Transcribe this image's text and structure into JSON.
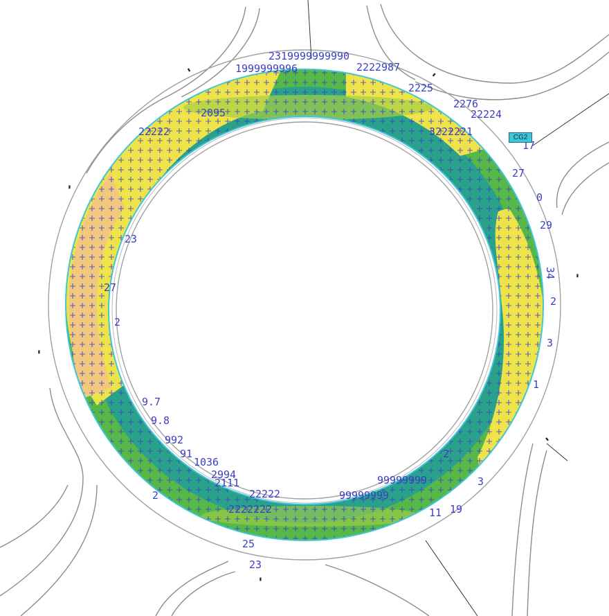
{
  "map": {
    "type": "roundabout-contour-plot",
    "colors": {
      "background": "#ffffff",
      "road_lines": "#8c8c8c",
      "contour_low": "#2aa18a",
      "contour_mid": "#57b84a",
      "contour_light": "#a5cf45",
      "contour_high": "#eee34a",
      "contour_peak": "#f2c77e",
      "edge_cyan": "#3fc6d8",
      "grid_values": "#3a3ec4"
    },
    "callout_label": "CG2",
    "inner_island_label": "",
    "value_labels": [
      {
        "text": "2319999999990"
      },
      {
        "text": "2222987"
      },
      {
        "text": "2225"
      },
      {
        "text": "1999999996"
      },
      {
        "text": "2276"
      },
      {
        "text": "22224"
      },
      {
        "text": "3222221"
      },
      {
        "text": "2095"
      },
      {
        "text": "22222"
      },
      {
        "text": "17"
      },
      {
        "text": "27"
      },
      {
        "text": "0"
      },
      {
        "text": "29"
      },
      {
        "text": "34"
      },
      {
        "text": "2"
      },
      {
        "text": "3"
      },
      {
        "text": "1"
      },
      {
        "text": "23"
      },
      {
        "text": "27"
      },
      {
        "text": "2"
      },
      {
        "text": "9.7"
      },
      {
        "text": "9.8"
      },
      {
        "text": "992"
      },
      {
        "text": "91"
      },
      {
        "text": "1036"
      },
      {
        "text": "2994"
      },
      {
        "text": "2111"
      },
      {
        "text": "22222"
      },
      {
        "text": "99999999"
      },
      {
        "text": "99999999"
      },
      {
        "text": "2"
      },
      {
        "text": "3"
      },
      {
        "text": "11"
      },
      {
        "text": "25"
      },
      {
        "text": "23"
      },
      {
        "text": "2222222"
      },
      {
        "text": "19"
      },
      {
        "text": "2"
      }
    ]
  }
}
